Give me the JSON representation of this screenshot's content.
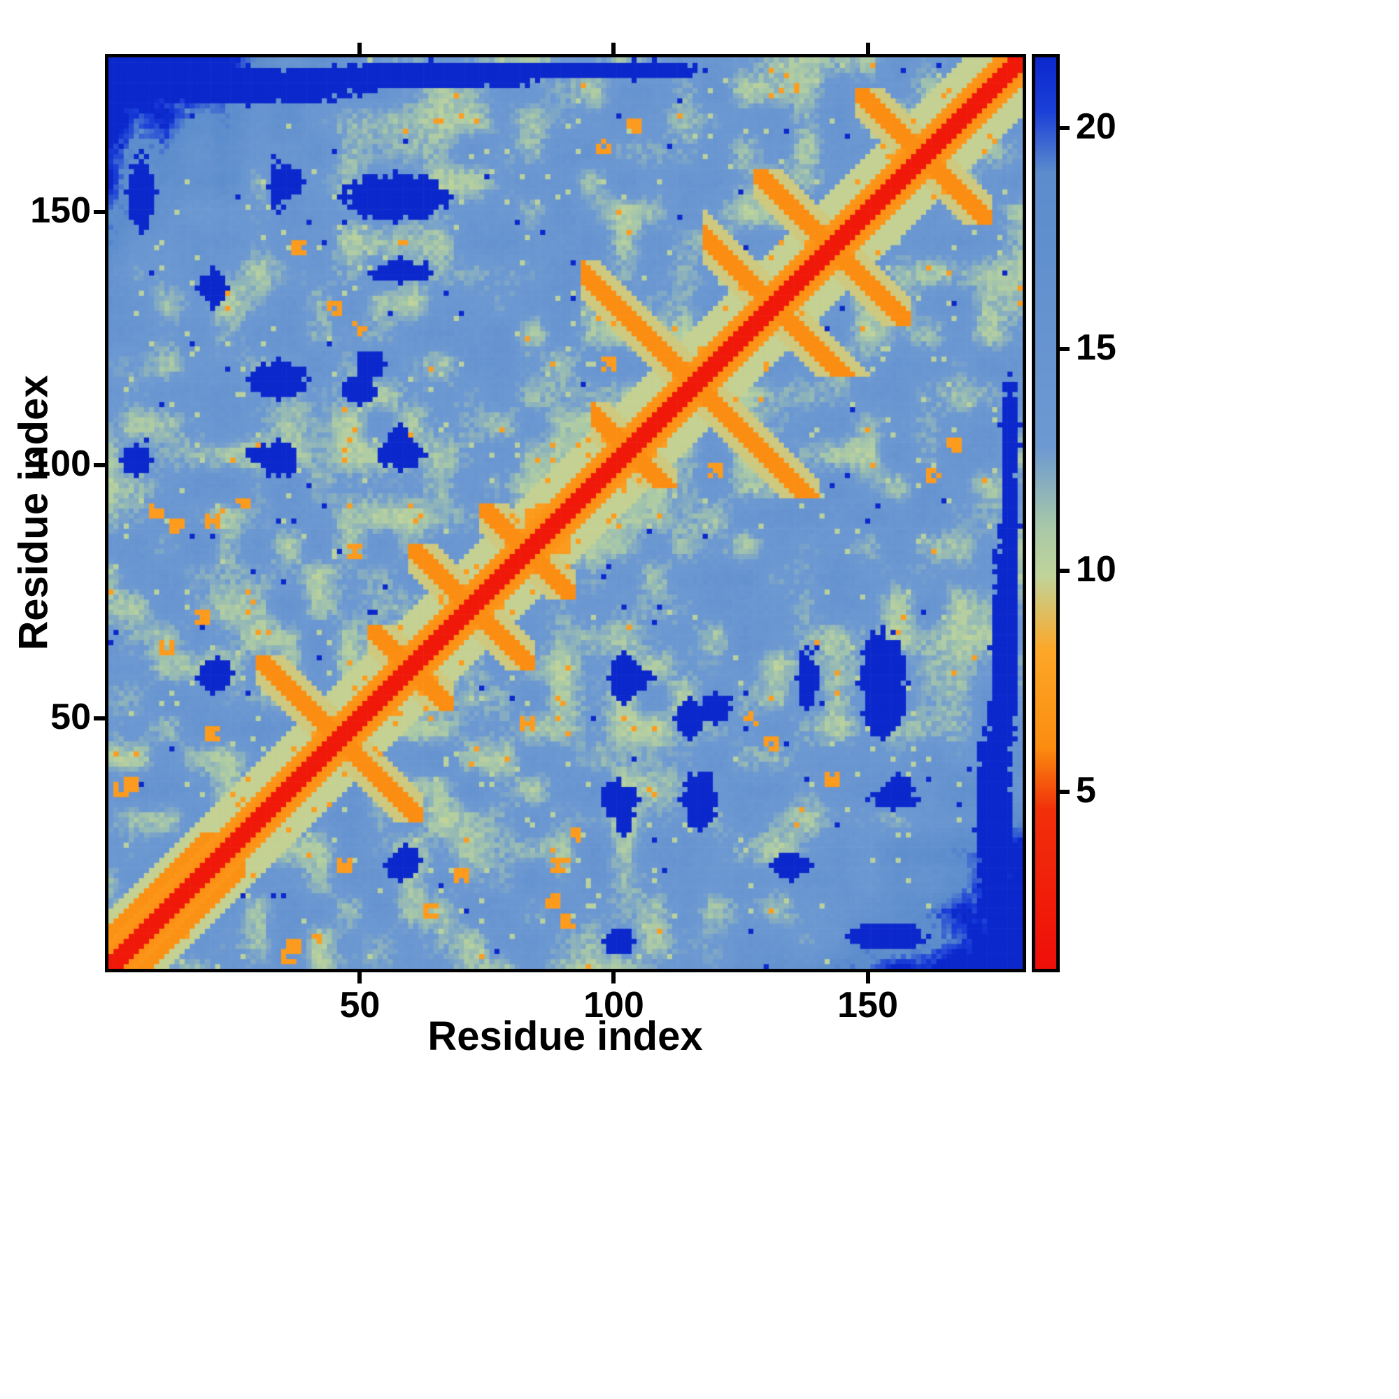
{
  "chart_data": {
    "type": "heatmap",
    "title": "",
    "xlabel": "Residue index",
    "ylabel": "Residue index",
    "x_range": [
      1,
      180
    ],
    "y_range": [
      1,
      180
    ],
    "x_ticks": [
      "50",
      "100",
      "150"
    ],
    "y_ticks": [
      "50",
      "100",
      "150"
    ],
    "x_tick_values": [
      50,
      100,
      150
    ],
    "y_tick_values": [
      50,
      100,
      150
    ],
    "grid": "off",
    "legend": "colorbar-right",
    "colorbar": {
      "ticks": [
        "5",
        "10",
        "15",
        "20"
      ],
      "tick_values": [
        5,
        10,
        15,
        20
      ],
      "vmin": 1.0,
      "vmax": 21.6
    },
    "color_stops": [
      [
        1.0,
        "#ef0e09"
      ],
      [
        4.6,
        "#f1300a"
      ],
      [
        6.0,
        "#fb8c10"
      ],
      [
        8.2,
        "#fda728"
      ],
      [
        9.9,
        "#c0d49a"
      ],
      [
        11.0,
        "#a8c8a8"
      ],
      [
        12.8,
        "#6d99d2"
      ],
      [
        19.0,
        "#5c8ccc"
      ],
      [
        20.4,
        "#1b3fd8"
      ],
      [
        21.6,
        "#0b28cc"
      ]
    ],
    "matrix": {
      "n": 180,
      "seed": 7,
      "parallel": {
        "max": 28,
        "offset": 7
      },
      "description": "Symmetric inter-residue distance map (~180 residues): red main diagonal (shortest distances), orange band within ~5 residues, yellow-green halo within ~11, steel-blue mid-range background (~12-15), dark blue above ~20 in sequence-distant corners/patches; anti-diagonal orange streaks indicate antiparallel hairpin contacts crossing the diagonal near residues 46, 60, 72, 83, 103, 116, 131, 143, 161."
    },
    "hairpins": [
      {
        "s": 92,
        "lo": 30,
        "hi": 62
      },
      {
        "s": 120,
        "lo": 52,
        "hi": 68
      },
      {
        "s": 144,
        "lo": 60,
        "hi": 84
      },
      {
        "s": 166,
        "lo": 74,
        "hi": 92
      },
      {
        "s": 206,
        "lo": 96,
        "hi": 112
      },
      {
        "s": 232,
        "lo": 94,
        "hi": 140
      },
      {
        "s": 263,
        "lo": 118,
        "hi": 150
      },
      {
        "s": 286,
        "lo": 128,
        "hi": 158
      },
      {
        "s": 322,
        "lo": 148,
        "hi": 174
      }
    ],
    "orange_dots": [
      [
        5,
        37
      ],
      [
        3,
        36
      ],
      [
        10,
        91
      ],
      [
        14,
        88
      ],
      [
        21,
        89
      ],
      [
        27,
        92
      ],
      [
        12,
        64
      ],
      [
        45,
        131
      ],
      [
        38,
        143
      ],
      [
        50,
        127
      ],
      [
        70,
        19
      ],
      [
        83,
        49
      ],
      [
        90,
        84
      ],
      [
        98,
        163
      ],
      [
        104,
        167
      ],
      [
        120,
        99
      ],
      [
        131,
        155
      ],
      [
        21,
        47
      ]
    ],
    "dark_patches": [
      [
        57,
        153,
        11,
        5
      ],
      [
        36,
        156,
        3,
        3
      ],
      [
        7,
        154,
        3,
        8
      ],
      [
        58,
        138,
        6,
        2
      ],
      [
        34,
        117,
        6,
        4
      ],
      [
        52,
        120,
        3,
        3
      ],
      [
        58,
        104,
        3,
        4
      ],
      [
        31,
        102,
        4,
        2
      ],
      [
        6,
        101,
        3,
        3
      ],
      [
        22,
        59,
        3,
        3
      ],
      [
        102,
        58,
        3,
        5
      ],
      [
        115,
        50,
        3,
        4
      ],
      [
        139,
        58,
        2,
        3
      ],
      [
        101,
        34,
        4,
        4
      ],
      [
        117,
        33,
        3,
        3
      ],
      [
        155,
        34,
        5,
        2
      ],
      [
        58,
        21,
        3,
        3
      ],
      [
        28,
        175,
        26,
        4
      ],
      [
        88,
        178,
        16,
        2
      ],
      [
        104,
        178,
        6,
        2
      ],
      [
        177,
        64,
        3,
        26
      ],
      [
        178,
        108,
        2,
        10
      ],
      [
        135,
        21,
        4,
        3
      ]
    ]
  }
}
